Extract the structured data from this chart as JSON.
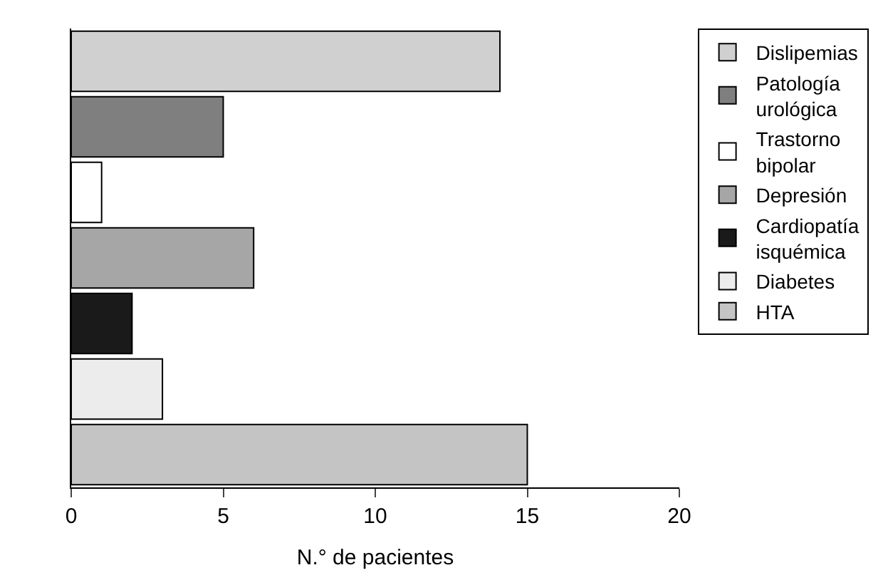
{
  "chart_data": {
    "type": "bar",
    "orientation": "horizontal",
    "categories": [
      null,
      null,
      null,
      null,
      null,
      null,
      null
    ],
    "series": [
      {
        "name": "Dislipemias",
        "color": "#d0d0d0",
        "values": [
          14.1,
          null,
          null,
          null,
          null,
          null,
          null
        ]
      },
      {
        "name": "Patología urológica",
        "color": "#7f7f7f",
        "values": [
          null,
          5,
          null,
          null,
          null,
          null,
          null
        ]
      },
      {
        "name": "Trastorno bipolar",
        "color": "#ffffff",
        "values": [
          null,
          null,
          1,
          null,
          null,
          null,
          null
        ]
      },
      {
        "name": "Depresión",
        "color": "#a6a6a6",
        "values": [
          null,
          null,
          null,
          6,
          null,
          null,
          null
        ]
      },
      {
        "name": "Cardiopatía isquémica",
        "color": "#1a1a1a",
        "values": [
          null,
          null,
          null,
          null,
          2,
          null,
          null
        ]
      },
      {
        "name": "Diabetes",
        "color": "#ececec",
        "values": [
          null,
          null,
          null,
          null,
          null,
          3,
          null
        ]
      },
      {
        "name": "HTA",
        "color": "#c4c4c4",
        "values": [
          null,
          null,
          null,
          null,
          null,
          null,
          15
        ]
      }
    ],
    "xlabel": "N.° de pacientes",
    "xlim": [
      0,
      20
    ],
    "xticks": [
      0,
      5,
      10,
      15,
      20
    ],
    "tick_labels": "x",
    "legend": "right"
  }
}
